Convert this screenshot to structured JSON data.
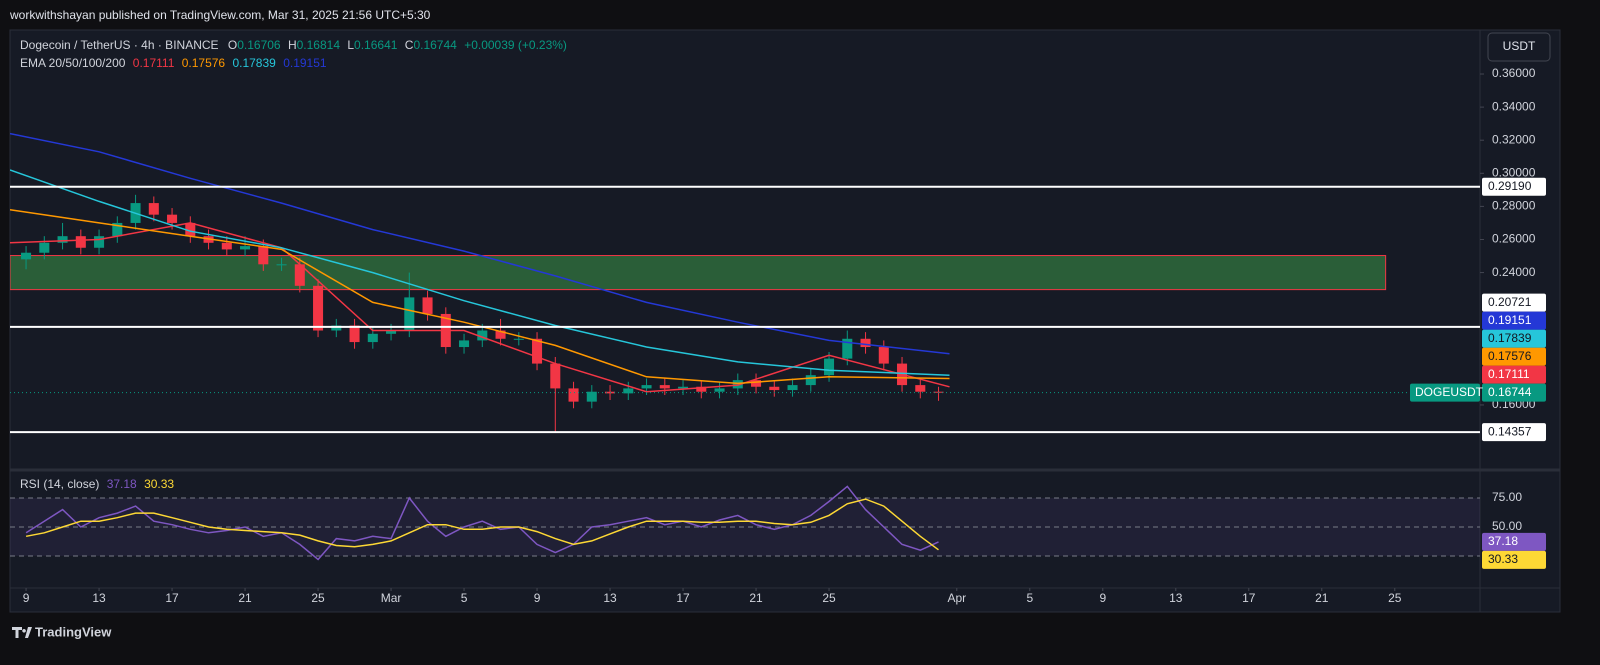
{
  "header": {
    "publisher": "workwithshayan published on TradingView.com, Mar 31, 2025 21:56 UTC+5:30"
  },
  "footer": {
    "brand": "TradingView"
  },
  "currency_button": "USDT",
  "chart_data": [
    {
      "type": "candlestick",
      "legend": {
        "symbol": "Dogecoin / TetherUS · 4h · BINANCE",
        "ohlc": [
          {
            "key": "O",
            "value": "0.16706"
          },
          {
            "key": "H",
            "value": "0.16814"
          },
          {
            "key": "L",
            "value": "0.16641"
          },
          {
            "key": "C",
            "value": "0.16744"
          }
        ],
        "change": "+0.00039 (+0.23%)"
      },
      "ema_title": "EMA 20/50/100/200",
      "xlim": [
        -0.88,
        79.67
      ],
      "ylim": [
        0.1219,
        0.3866
      ],
      "grid": false,
      "yticks": [
        {
          "value": 0.36,
          "label": "0.36000"
        },
        {
          "value": 0.34,
          "label": "0.34000"
        },
        {
          "value": 0.32,
          "label": "0.32000"
        },
        {
          "value": 0.3,
          "label": "0.30000"
        },
        {
          "value": 0.28,
          "label": "0.28000"
        },
        {
          "value": 0.26,
          "label": "0.26000"
        },
        {
          "value": 0.24,
          "label": "0.24000"
        },
        {
          "value": 0.16,
          "label": "0.16000"
        }
      ],
      "up_color": "#089981",
      "down_color": "#f23645",
      "candles": {
        "x": [
          0,
          1,
          2,
          3,
          4,
          5,
          6,
          7,
          8,
          9,
          10,
          11,
          12,
          13,
          14,
          15,
          16,
          17,
          18,
          19,
          20,
          21,
          22,
          23,
          24,
          25,
          26,
          27,
          28,
          29,
          30,
          31,
          32,
          33,
          34,
          35,
          36,
          37,
          38,
          39,
          40,
          41,
          42,
          43,
          44,
          45,
          46,
          47,
          48,
          49,
          50
        ],
        "open": [
          0.248,
          0.252,
          0.258,
          0.262,
          0.255,
          0.262,
          0.27,
          0.282,
          0.275,
          0.27,
          0.262,
          0.258,
          0.254,
          0.256,
          0.245,
          0.245,
          0.232,
          0.205,
          0.208,
          0.198,
          0.203,
          0.205,
          0.225,
          0.215,
          0.195,
          0.199,
          0.205,
          0.2,
          0.2,
          0.185,
          0.17,
          0.162,
          0.168,
          0.167,
          0.17,
          0.172,
          0.17,
          0.171,
          0.168,
          0.17,
          0.175,
          0.171,
          0.169,
          0.172,
          0.178,
          0.188,
          0.2,
          0.195,
          0.185,
          0.172,
          0.168
        ],
        "high": [
          0.256,
          0.262,
          0.27,
          0.266,
          0.266,
          0.274,
          0.287,
          0.286,
          0.279,
          0.274,
          0.266,
          0.262,
          0.262,
          0.26,
          0.249,
          0.249,
          0.236,
          0.212,
          0.212,
          0.207,
          0.209,
          0.24,
          0.229,
          0.219,
          0.203,
          0.209,
          0.212,
          0.204,
          0.204,
          0.189,
          0.174,
          0.172,
          0.172,
          0.174,
          0.176,
          0.176,
          0.175,
          0.175,
          0.174,
          0.179,
          0.179,
          0.175,
          0.176,
          0.182,
          0.192,
          0.205,
          0.204,
          0.199,
          0.189,
          0.176,
          0.171
        ],
        "low": [
          0.242,
          0.248,
          0.254,
          0.251,
          0.251,
          0.258,
          0.266,
          0.271,
          0.266,
          0.258,
          0.254,
          0.25,
          0.25,
          0.241,
          0.241,
          0.228,
          0.201,
          0.201,
          0.194,
          0.194,
          0.199,
          0.201,
          0.211,
          0.191,
          0.191,
          0.195,
          0.196,
          0.196,
          0.181,
          0.1436,
          0.158,
          0.158,
          0.163,
          0.163,
          0.166,
          0.166,
          0.166,
          0.164,
          0.164,
          0.166,
          0.167,
          0.165,
          0.165,
          0.168,
          0.174,
          0.184,
          0.191,
          0.181,
          0.168,
          0.164,
          0.1625
        ],
        "close": [
          0.252,
          0.258,
          0.262,
          0.255,
          0.262,
          0.27,
          0.282,
          0.275,
          0.27,
          0.262,
          0.258,
          0.254,
          0.256,
          0.245,
          0.245,
          0.232,
          0.205,
          0.208,
          0.198,
          0.203,
          0.205,
          0.225,
          0.215,
          0.195,
          0.199,
          0.205,
          0.2,
          0.2,
          0.185,
          0.17,
          0.162,
          0.168,
          0.167,
          0.17,
          0.172,
          0.17,
          0.171,
          0.168,
          0.17,
          0.175,
          0.171,
          0.169,
          0.172,
          0.178,
          0.188,
          0.2,
          0.195,
          0.185,
          0.172,
          0.168,
          0.16744
        ]
      },
      "series": [
        {
          "color": "#f23645",
          "x": [
            -0.88,
            4,
            9,
            14,
            19,
            24,
            29,
            34,
            39,
            44,
            50.6
          ],
          "values": [
            0.258,
            0.26,
            0.27,
            0.255,
            0.205,
            0.205,
            0.185,
            0.168,
            0.172,
            0.19,
            0.171
          ],
          "last": {
            "value": 0.17111,
            "label": "0.17111"
          }
        },
        {
          "color": "#ff9800",
          "x": [
            -0.88,
            4,
            9,
            14,
            19,
            24,
            29,
            34,
            39,
            44,
            50.6
          ],
          "values": [
            0.278,
            0.27,
            0.262,
            0.254,
            0.222,
            0.21,
            0.196,
            0.177,
            0.173,
            0.177,
            0.176
          ],
          "last": {
            "value": 0.17576,
            "label": "0.17576"
          }
        },
        {
          "color": "#26c6da",
          "x": [
            -0.88,
            4,
            9,
            14,
            19,
            24,
            29,
            34,
            39,
            44,
            50.6
          ],
          "values": [
            0.302,
            0.283,
            0.265,
            0.255,
            0.24,
            0.223,
            0.208,
            0.195,
            0.186,
            0.181,
            0.178
          ],
          "last": {
            "value": 0.17839,
            "label": "0.17839"
          }
        },
        {
          "color": "#2438d6",
          "x": [
            -0.88,
            4,
            9,
            14,
            19,
            24,
            29,
            34,
            39,
            44,
            50.6
          ],
          "values": [
            0.324,
            0.313,
            0.297,
            0.282,
            0.266,
            0.253,
            0.238,
            0.222,
            0.21,
            0.199,
            0.191
          ],
          "last": {
            "value": 0.19151,
            "label": "0.19151"
          }
        }
      ],
      "zone": {
        "low": 0.2297,
        "high": 0.2503,
        "x_end": 74.5,
        "color": "#2e6b3c",
        "border": "#f23645"
      },
      "levels": [
        {
          "value": 0.2919,
          "label": "0.29190"
        },
        {
          "value": 0.20721,
          "label": "0.20721"
        },
        {
          "value": 0.14357,
          "label": "0.14357"
        }
      ],
      "last_price": {
        "symbol": "DOGEUSDT",
        "value": 0.16744,
        "label": "0.16744",
        "color": "#089981"
      }
    },
    {
      "type": "line",
      "title": "RSI (14, close)",
      "xlim": [
        -0.88,
        79.67
      ],
      "ylim": [
        -2.6,
        97.4
      ],
      "yticks": [
        {
          "value": 75,
          "label": "75.00"
        },
        {
          "value": 50,
          "label": "50.00"
        }
      ],
      "lower_band": 25,
      "band_color": "#7e57c2",
      "xticks": [
        {
          "value": 0,
          "label": "9"
        },
        {
          "value": 4,
          "label": "13"
        },
        {
          "value": 8,
          "label": "17"
        },
        {
          "value": 12,
          "label": "21"
        },
        {
          "value": 16,
          "label": "25"
        },
        {
          "value": 20,
          "label": "Mar"
        },
        {
          "value": 24,
          "label": "5"
        },
        {
          "value": 28,
          "label": "9"
        },
        {
          "value": 32,
          "label": "13"
        },
        {
          "value": 36,
          "label": "17"
        },
        {
          "value": 40,
          "label": "21"
        },
        {
          "value": 44,
          "label": "25"
        },
        {
          "value": 51,
          "label": "Apr"
        },
        {
          "value": 55,
          "label": "5"
        },
        {
          "value": 59,
          "label": "9"
        },
        {
          "value": 63,
          "label": "13"
        },
        {
          "value": 67,
          "label": "17"
        },
        {
          "value": 71,
          "label": "21"
        },
        {
          "value": 75,
          "label": "25"
        }
      ],
      "x": [
        0,
        1,
        2,
        3,
        4,
        5,
        6,
        7,
        8,
        9,
        10,
        11,
        12,
        13,
        14,
        15,
        16,
        17,
        18,
        19,
        20,
        21,
        22,
        23,
        24,
        25,
        26,
        27,
        28,
        29,
        30,
        31,
        32,
        33,
        34,
        35,
        36,
        37,
        38,
        39,
        40,
        41,
        42,
        43,
        44,
        45,
        46,
        47,
        48,
        49,
        50
      ],
      "series": [
        {
          "color": "#7e57c2",
          "values": [
            45,
            55,
            65,
            50,
            58,
            62,
            68,
            55,
            52,
            48,
            45,
            47,
            50,
            42,
            45,
            35,
            22,
            40,
            38,
            42,
            40,
            75,
            55,
            42,
            50,
            55,
            48,
            50,
            35,
            28,
            35,
            50,
            52,
            55,
            58,
            52,
            55,
            50,
            56,
            60,
            52,
            48,
            52,
            60,
            72,
            85,
            65,
            50,
            35,
            30,
            37.18
          ],
          "last": {
            "value": 37.18,
            "label": "37.18"
          }
        },
        {
          "color": "#fdd835",
          "values": [
            42,
            45,
            50,
            55,
            55,
            58,
            62,
            62,
            58,
            54,
            50,
            48,
            47,
            46,
            45,
            43,
            38,
            34,
            33,
            35,
            38,
            45,
            52,
            52,
            48,
            48,
            50,
            50,
            46,
            40,
            35,
            38,
            44,
            50,
            55,
            55,
            55,
            54,
            54,
            55,
            55,
            53,
            52,
            54,
            60,
            70,
            74,
            68,
            55,
            42,
            30.33
          ],
          "last": {
            "value": 30.33,
            "label": "30.33"
          }
        }
      ]
    }
  ]
}
